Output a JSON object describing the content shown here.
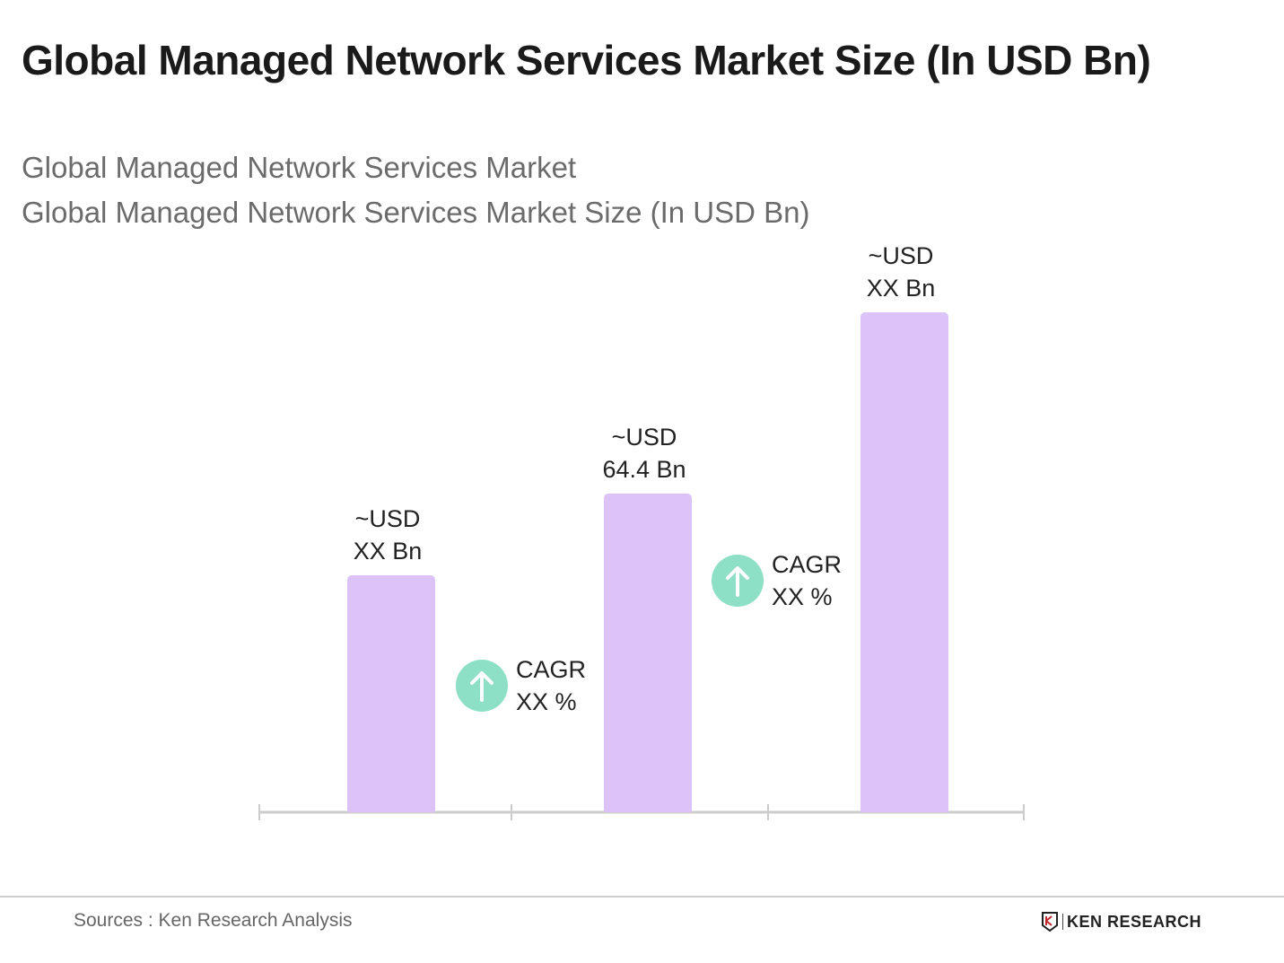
{
  "title": "Global Managed Network Services Market Size (In USD Bn)",
  "subtitle_1": "Global Managed Network Services Market",
  "subtitle_2": "Global Managed Network Services Market Size (In USD Bn)",
  "chart_data": {
    "type": "bar",
    "categories": [
      "",
      "",
      ""
    ],
    "values": [
      47.9,
      64.4,
      101.0
    ],
    "data_labels": [
      [
        "~USD",
        "XX Bn"
      ],
      [
        "~USD",
        "64.4 Bn"
      ],
      [
        "~USD",
        "XX Bn"
      ]
    ],
    "annotations": [
      {
        "between": [
          0,
          1
        ],
        "icon": "arrow-up-circle-icon",
        "lines": [
          "CAGR",
          "XX %"
        ]
      },
      {
        "between": [
          1,
          2
        ],
        "icon": "arrow-up-circle-icon",
        "lines": [
          "CAGR",
          "XX %"
        ]
      }
    ],
    "ylim": [
      0,
      110
    ],
    "grid": false,
    "colors": {
      "bar": "#dcc2f6",
      "cagr_icon": "#8de0c5",
      "axis": "#cccccc"
    }
  },
  "footer": {
    "source": "Sources : Ken Research Analysis",
    "logo_text": "KEN RESEARCH"
  }
}
